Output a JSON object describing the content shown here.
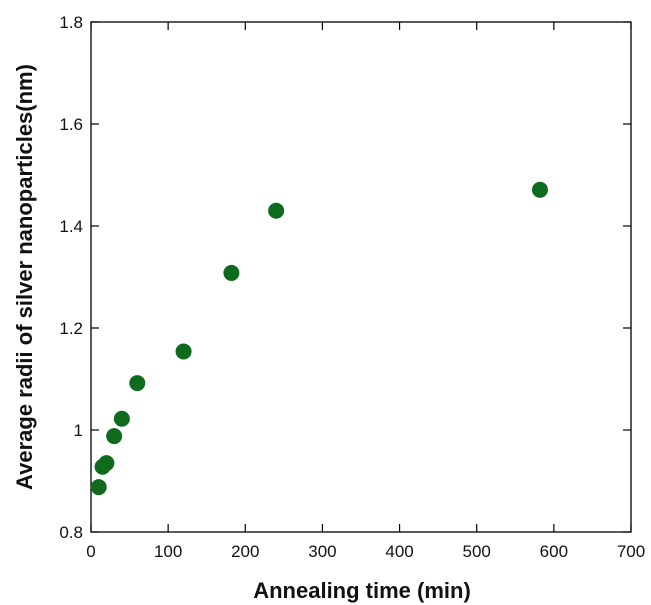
{
  "chart_data": {
    "type": "scatter",
    "xlabel": "Annealing time (min)",
    "ylabel": "Average radii of silver nanoparticles(nm)",
    "xlim": [
      0,
      700
    ],
    "ylim": [
      0.8,
      1.8
    ],
    "x_ticks": [
      0,
      100,
      200,
      300,
      400,
      500,
      600,
      700
    ],
    "x_tick_labels": [
      "0",
      "100",
      "200",
      "300",
      "400",
      "500",
      "600",
      "700"
    ],
    "y_ticks": [
      0.8,
      1.0,
      1.2,
      1.4,
      1.6,
      1.8
    ],
    "y_tick_labels": [
      "0.8",
      "1",
      "1.2",
      "1.4",
      "1.6",
      "1.8"
    ],
    "grid": false,
    "legend": "none",
    "marker_color": "#0e6a1c",
    "series": [
      {
        "points": [
          {
            "x": 10,
            "y": 0.888
          },
          {
            "x": 15,
            "y": 0.928
          },
          {
            "x": 20,
            "y": 0.935
          },
          {
            "x": 30,
            "y": 0.988
          },
          {
            "x": 40,
            "y": 1.022
          },
          {
            "x": 60,
            "y": 1.092
          },
          {
            "x": 120,
            "y": 1.154
          },
          {
            "x": 182,
            "y": 1.308
          },
          {
            "x": 240,
            "y": 1.43
          },
          {
            "x": 582,
            "y": 1.471
          }
        ]
      }
    ]
  }
}
